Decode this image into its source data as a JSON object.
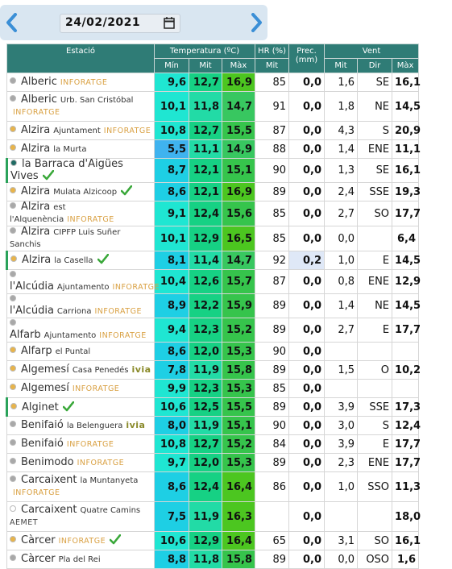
{
  "header": {
    "date": "24/02/2021"
  },
  "table": {
    "header_top": [
      "Estació",
      "Temperatura (ºC)",
      "HR (%)",
      "Prec. (mm)",
      "Vent"
    ],
    "header_sub": [
      "Mín",
      "Mit",
      "Màx",
      "Mit",
      "Mit",
      "Dir",
      "Màx"
    ],
    "rows": [
      {
        "name": "Alberic",
        "tag": "INFORATGE",
        "dot": "#a8a8a8",
        "cells": {
          "min": "9,6",
          "mit": "12,7",
          "max": "16,9",
          "hr": "85",
          "prec": "0,0",
          "wind": "1,6",
          "dir": "SE",
          "gust": "16,1"
        }
      },
      {
        "name": "Alberic",
        "place": "Urb. San Cristóbal",
        "tag": "INFORATGE",
        "tall": true,
        "dot": "#a8a8a8",
        "cells": {
          "min": "10,1",
          "mit": "11,8",
          "max": "14,7",
          "hr": "91",
          "prec": "0,0",
          "wind": "1,8",
          "dir": "NE",
          "gust": "14,5"
        }
      },
      {
        "name": "Alzira",
        "place": "Ajuntament",
        "tag": "INFORATGE",
        "dot": "#e8b44a",
        "cells": {
          "min": "10,8",
          "mit": "12,7",
          "max": "15,5",
          "hr": "87",
          "prec": "0,0",
          "wind": "4,3",
          "dir": "S",
          "gust": "20,9"
        }
      },
      {
        "name": "Alzira",
        "place": "la Murta",
        "dot": "#e8b44a",
        "cells": {
          "min": "5,5",
          "mit": "11,1",
          "max": "14,9",
          "hr": "88",
          "prec": "0,0",
          "wind": "1,4",
          "dir": "ENE",
          "gust": "11,1"
        }
      },
      {
        "name": "la Barraca d'Aigües Vives",
        "check": true,
        "highlight": true,
        "dot": "#1f6b63",
        "cells": {
          "min": "8,7",
          "mit": "12,1",
          "max": "15,1",
          "hr": "90",
          "prec": "0,0",
          "wind": "1,3",
          "dir": "SE",
          "gust": "16,1"
        }
      },
      {
        "name": "Alzira",
        "place": "Mulata Alzicoop",
        "check": true,
        "dot": "#e8b44a",
        "cells": {
          "min": "8,6",
          "mit": "12,1",
          "max": "16,9",
          "hr": "89",
          "prec": "0,0",
          "wind": "2,4",
          "dir": "SSE",
          "gust": "19,3"
        }
      },
      {
        "name": "Alzira",
        "place": "est l'Alquenència",
        "tag": "INFORATGE",
        "dot": "#a8a8a8",
        "cells": {
          "min": "9,1",
          "mit": "12,4",
          "max": "15,6",
          "hr": "85",
          "prec": "0,0",
          "wind": "2,7",
          "dir": "SO",
          "gust": "17,7"
        }
      },
      {
        "name": "Alzira",
        "place": "CIPFP Luis Suñer Sanchis",
        "dot": "#a8a8a8",
        "cells": {
          "min": "10,1",
          "mit": "12,9",
          "max": "16,5",
          "hr": "85",
          "prec": "0,0",
          "wind": "0,0",
          "gust": "6,4"
        }
      },
      {
        "name": "Alzira",
        "place": "la Casella",
        "check": true,
        "highlight": true,
        "dot": "#e8b44a",
        "cells": {
          "min": "8,1",
          "mit": "11,4",
          "max": "14,7",
          "hr": "92",
          "prec": "0,2",
          "wind": "1,0",
          "dir": "E",
          "gust": "14,5"
        }
      },
      {
        "name": "l'Alcúdia",
        "place": "Ajuntamento",
        "tag": "INFORATGE",
        "dot": "#a8a8a8",
        "cells": {
          "min": "10,4",
          "mit": "12,6",
          "max": "15,7",
          "hr": "87",
          "prec": "0,0",
          "wind": "0,8",
          "dir": "ENE",
          "gust": "12,9"
        }
      },
      {
        "name": "l'Alcúdia",
        "place": "Carriona",
        "tag": "INFORATGE",
        "dot": "#a8a8a8",
        "cells": {
          "min": "8,9",
          "mit": "12,2",
          "max": "15,9",
          "hr": "89",
          "prec": "0,0",
          "wind": "1,4",
          "dir": "NE",
          "gust": "14,5"
        }
      },
      {
        "name": "Alfarb",
        "place": "Ajuntamento",
        "tag": "INFORATGE",
        "dot": "#a8a8a8",
        "cells": {
          "min": "9,4",
          "mit": "12,3",
          "max": "15,2",
          "hr": "89",
          "prec": "0,0",
          "wind": "2,7",
          "dir": "E",
          "gust": "17,7"
        }
      },
      {
        "name": "Alfarp",
        "place": "el Puntal",
        "dot": "#e8b44a",
        "cells": {
          "min": "8,6",
          "mit": "12,0",
          "max": "15,3",
          "hr": "90",
          "prec": "0,0"
        }
      },
      {
        "name": "Algemesí",
        "place": "Casa Penedés",
        "tag": "ivia",
        "dot": "#e8b44a",
        "cells": {
          "min": "7,8",
          "mit": "11,9",
          "max": "15,8",
          "hr": "89",
          "prec": "0,0",
          "wind": "1,5",
          "dir": "O",
          "gust": "10,2"
        }
      },
      {
        "name": "Algemesí",
        "tag": "INFORATGE",
        "dot": "#e8b44a",
        "cells": {
          "min": "9,9",
          "mit": "12,3",
          "max": "15,3",
          "hr": "85",
          "prec": "0,0"
        }
      },
      {
        "name": "Alginet",
        "check": true,
        "highlight": true,
        "dot": "#e8b44a",
        "cells": {
          "min": "10,6",
          "mit": "12,5",
          "max": "15,5",
          "hr": "89",
          "prec": "0,0",
          "wind": "3,9",
          "dir": "SSE",
          "gust": "17,3"
        }
      },
      {
        "name": "Benifaió",
        "place": "la Belenguera",
        "tag": "ivia",
        "dot": "#a8a8a8",
        "cells": {
          "min": "8,0",
          "mit": "11,9",
          "max": "15,1",
          "hr": "90",
          "prec": "0,0",
          "wind": "3,0",
          "dir": "S",
          "gust": "12,4"
        }
      },
      {
        "name": "Benifaió",
        "tag": "INFORATGE",
        "dot": "#a8a8a8",
        "cells": {
          "min": "10,8",
          "mit": "12,7",
          "max": "15,2",
          "hr": "84",
          "prec": "0,0",
          "wind": "3,9",
          "dir": "E",
          "gust": "17,7"
        }
      },
      {
        "name": "Benimodo",
        "tag": "INFORATGE",
        "dot": "#a8a8a8",
        "cells": {
          "min": "9,7",
          "mit": "12,0",
          "max": "15,3",
          "hr": "89",
          "prec": "0,0",
          "wind": "2,3",
          "dir": "ENE",
          "gust": "17,7"
        }
      },
      {
        "name": "Carcaixent",
        "place": "la Muntanyeta",
        "tag": "INFORATGE",
        "tall": true,
        "dot": "#a8a8a8",
        "cells": {
          "min": "8,6",
          "mit": "12,4",
          "max": "16,4",
          "hr": "86",
          "prec": "0,0",
          "wind": "1,0",
          "dir": "SSO",
          "gust": "11,3"
        }
      },
      {
        "name": "Carcaixent",
        "place": "Quatre Camins",
        "tag": "AEMET",
        "tall": true,
        "dot": "#ffffff",
        "cells": {
          "min": "7,5",
          "mit": "11,9",
          "max": "16,3",
          "prec": "0,0",
          "gust": "18,0"
        }
      },
      {
        "name": "Càrcer",
        "tag": "INFORATGE",
        "check": true,
        "dot": "#e8b44a",
        "cells": {
          "min": "10,6",
          "mit": "12,9",
          "max": "16,4",
          "hr": "65",
          "prec": "0,0",
          "wind": "3,1",
          "dir": "SO",
          "gust": "16,1"
        }
      },
      {
        "name": "Càrcer",
        "place": "Pla del Rei",
        "dot": "#a8a8a8",
        "cells": {
          "min": "8,8",
          "mit": "11,8",
          "max": "15,8",
          "hr": "89",
          "prec": "0,0",
          "wind": "0,0",
          "dir": "OSO",
          "gust": "1,6"
        }
      }
    ]
  }
}
